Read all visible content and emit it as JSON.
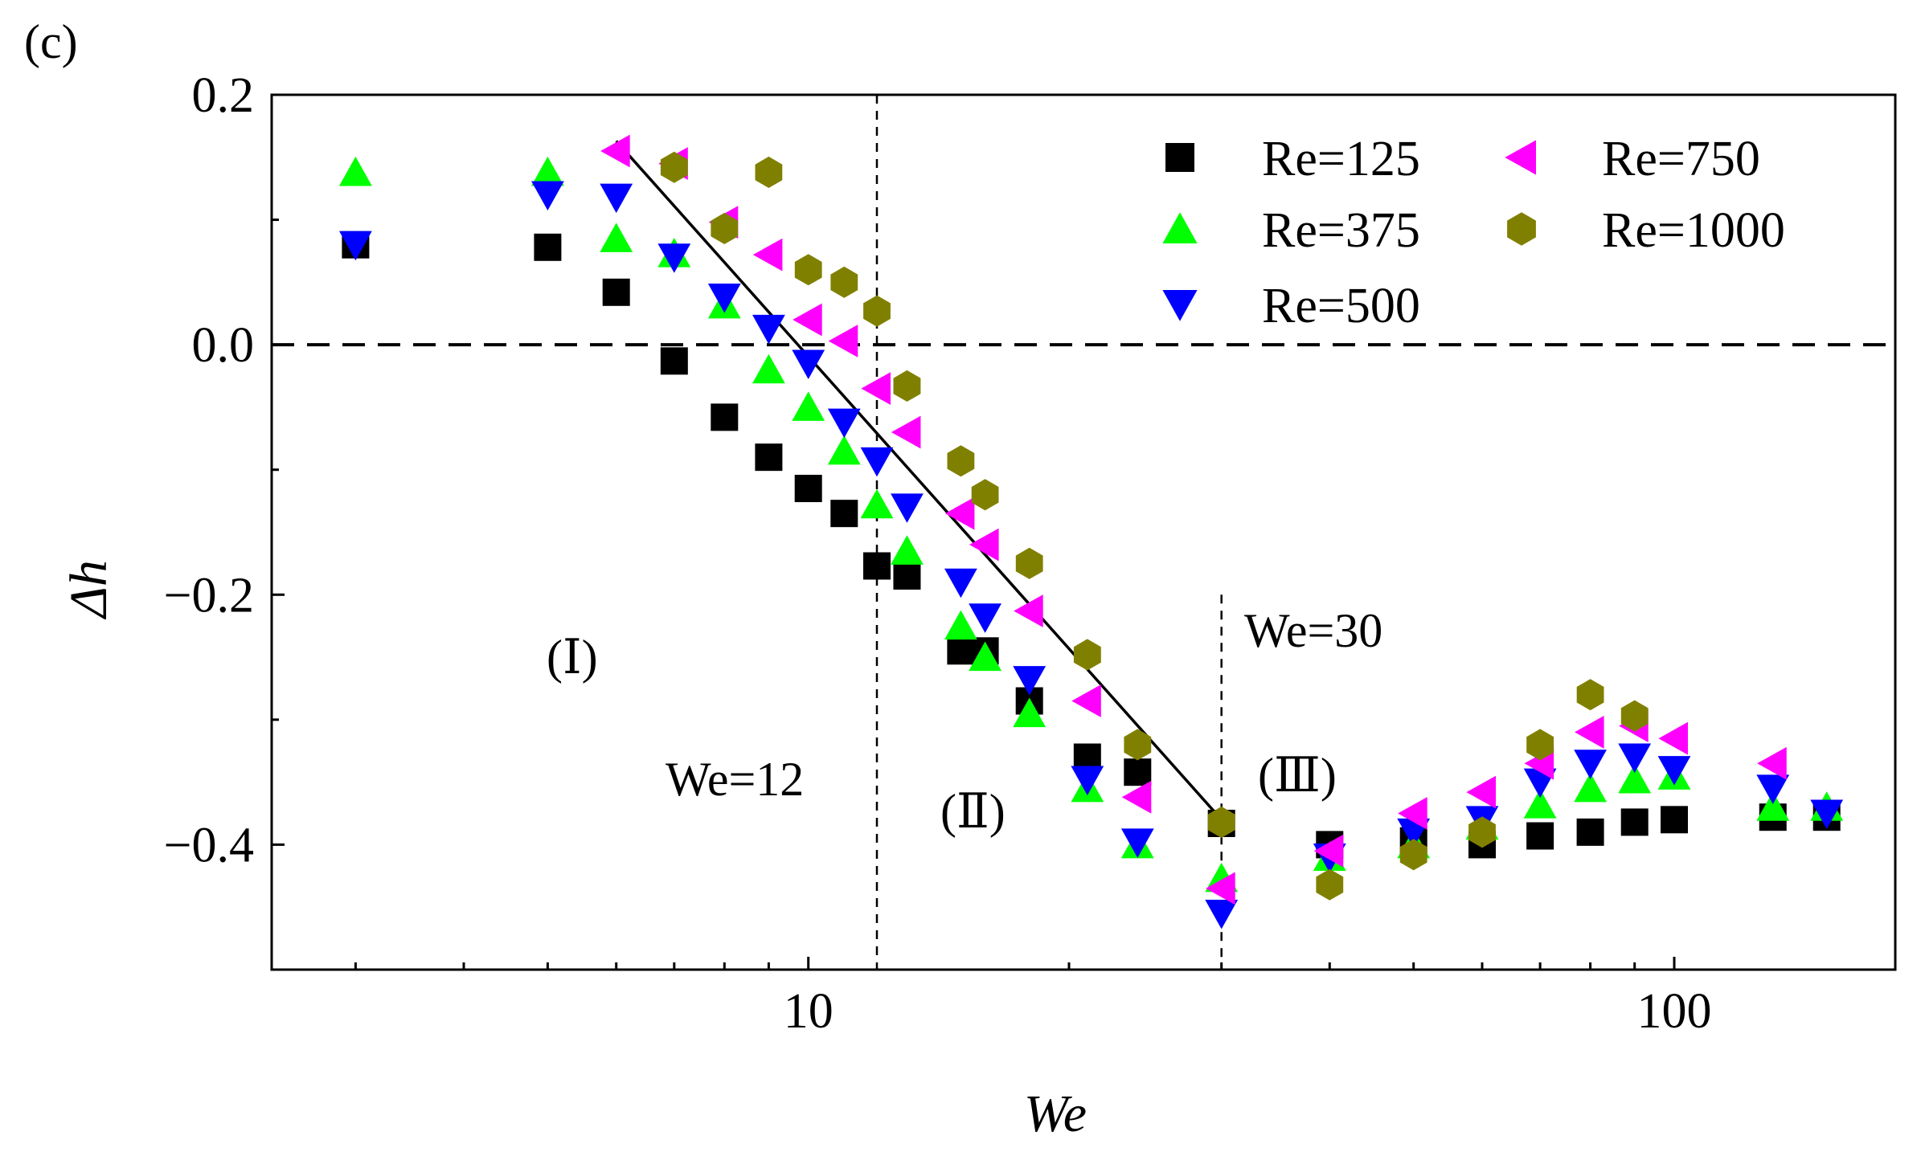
{
  "chart_data": {
    "type": "scatter",
    "panel_label": "(c)",
    "xlabel": "We",
    "ylabel": "Δh",
    "xscale": "log",
    "xlim": [
      2.4,
      180
    ],
    "ylim": [
      -0.5,
      0.2
    ],
    "x_ticks": [
      10,
      100
    ],
    "x_tick_labels": [
      "10",
      "100"
    ],
    "y_ticks": [
      -0.4,
      -0.2,
      0.0,
      0.2
    ],
    "y_tick_labels": [
      "−0.4",
      "−0.2",
      "0.0",
      "0.2"
    ],
    "reference_lines": [
      {
        "orientation": "horizontal",
        "value": 0.0,
        "style": "dashed"
      },
      {
        "orientation": "vertical",
        "value": 12,
        "style": "dashed",
        "label": "We=12"
      },
      {
        "orientation": "vertical",
        "value": 30,
        "style": "dashed",
        "label": "We=30"
      }
    ],
    "fit_line": {
      "x": [
        6.0,
        30.0
      ],
      "y": [
        0.163,
        -0.38
      ]
    },
    "annotations": [
      "(Ⅰ)",
      "(Ⅱ)",
      "(Ⅲ)",
      "We=12",
      "We=30"
    ],
    "legend": {
      "placement": "top-right",
      "entries": [
        "Re=125",
        "Re=375",
        "Re=500",
        "Re=750",
        "Re=1000"
      ]
    },
    "series": [
      {
        "name": "Re=125",
        "marker": "square",
        "color": "#000000",
        "x": [
          3,
          5,
          6,
          7,
          8,
          9,
          10,
          11,
          12,
          13,
          15,
          16,
          18,
          21,
          24,
          30,
          40,
          50,
          60,
          70,
          80,
          90,
          100,
          130,
          150
        ],
        "y": [
          0.08,
          0.078,
          0.042,
          -0.013,
          -0.058,
          -0.09,
          -0.115,
          -0.135,
          -0.177,
          -0.185,
          -0.245,
          -0.245,
          -0.285,
          -0.33,
          -0.342,
          -0.383,
          -0.4,
          -0.397,
          -0.4,
          -0.393,
          -0.39,
          -0.382,
          -0.38,
          -0.378,
          -0.378
        ]
      },
      {
        "name": "Re=375",
        "marker": "triangle-up",
        "color": "#00ff00",
        "x": [
          3,
          5,
          6,
          7,
          8,
          9,
          10,
          11,
          12,
          13,
          15,
          16,
          18,
          21,
          24,
          30,
          40,
          50,
          60,
          70,
          80,
          90,
          100,
          130,
          150
        ],
        "y": [
          0.138,
          0.138,
          0.085,
          0.073,
          0.032,
          -0.02,
          -0.05,
          -0.085,
          -0.128,
          -0.165,
          -0.225,
          -0.25,
          -0.295,
          -0.355,
          -0.4,
          -0.427,
          -0.41,
          -0.4,
          -0.385,
          -0.368,
          -0.355,
          -0.348,
          -0.345,
          -0.37,
          -0.37
        ]
      },
      {
        "name": "Re=500",
        "marker": "triangle-down",
        "color": "#0000ff",
        "x": [
          3,
          5,
          6,
          7,
          8,
          9,
          10,
          11,
          12,
          13,
          15,
          16,
          18,
          21,
          24,
          30,
          40,
          50,
          60,
          70,
          80,
          90,
          100,
          130,
          150
        ],
        "y": [
          0.08,
          0.12,
          0.118,
          0.07,
          0.038,
          0.013,
          -0.015,
          -0.062,
          -0.093,
          -0.13,
          -0.19,
          -0.218,
          -0.268,
          -0.348,
          -0.398,
          -0.455,
          -0.41,
          -0.39,
          -0.38,
          -0.35,
          -0.335,
          -0.33,
          -0.34,
          -0.355,
          -0.375
        ]
      },
      {
        "name": "Re=750",
        "marker": "triangle-left",
        "color": "#ff00ff",
        "x": [
          6,
          7,
          8,
          9,
          10,
          11,
          12,
          13,
          15,
          16,
          18,
          21,
          24,
          30,
          40,
          50,
          60,
          70,
          80,
          90,
          100,
          130
        ],
        "y": [
          0.155,
          0.145,
          0.098,
          0.072,
          0.02,
          0.003,
          -0.035,
          -0.07,
          -0.135,
          -0.16,
          -0.213,
          -0.285,
          -0.362,
          -0.435,
          -0.405,
          -0.375,
          -0.358,
          -0.335,
          -0.31,
          -0.305,
          -0.315,
          -0.335
        ]
      },
      {
        "name": "Re=1000",
        "marker": "hexagon",
        "color": "#808000",
        "x": [
          7,
          8,
          9,
          10,
          11,
          12,
          13,
          15,
          16,
          18,
          21,
          24,
          30,
          40,
          50,
          60,
          70,
          80,
          90
        ],
        "y": [
          0.142,
          0.093,
          0.138,
          0.06,
          0.05,
          0.027,
          -0.033,
          -0.093,
          -0.12,
          -0.175,
          -0.248,
          -0.32,
          -0.382,
          -0.432,
          -0.408,
          -0.39,
          -0.32,
          -0.28,
          -0.297
        ]
      }
    ]
  }
}
